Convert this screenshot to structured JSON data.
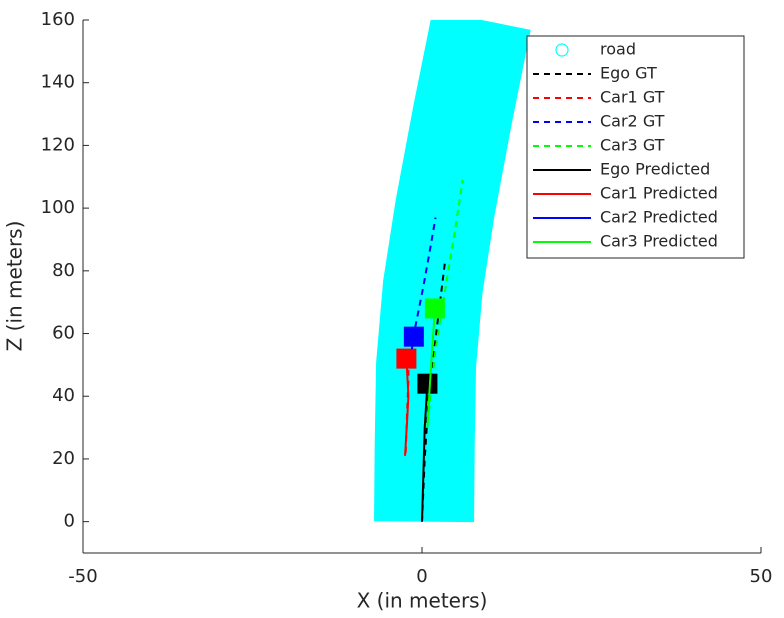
{
  "chart_data": {
    "type": "line",
    "xlabel": "X (in meters)",
    "ylabel": "Z (in meters)",
    "xlim": [
      -50,
      50
    ],
    "xticks": [
      -50,
      0,
      50
    ],
    "ylim": [
      -10,
      160
    ],
    "yticks": [
      0,
      20,
      40,
      60,
      80,
      100,
      120,
      140,
      160
    ],
    "legend": "upper right",
    "series": [
      {
        "name": "road",
        "color": "#00ffff",
        "marker": "circle",
        "x": [
          0.3,
          0.4,
          0.6,
          1.6,
          3.4,
          6.0,
          8.8
        ],
        "y": [
          0,
          25,
          50,
          75,
          100,
          130,
          160
        ]
      },
      {
        "name": "Ego GT",
        "color": "#000000",
        "dash": true,
        "x": [
          0,
          0.4,
          1.0,
          2.2,
          3.4
        ],
        "y": [
          0,
          20,
          40,
          62,
          83
        ]
      },
      {
        "name": "Car1 GT",
        "color": "#ff0000",
        "dash": true,
        "x": [
          -2.4,
          -2.2,
          -2.0,
          -2.0
        ],
        "y": [
          22,
          35,
          45,
          52
        ]
      },
      {
        "name": "Car2 GT",
        "color": "#0000ff",
        "dash": true,
        "x": [
          -1.0,
          0.2,
          1.2,
          2.0
        ],
        "y": [
          62,
          75,
          87,
          97
        ]
      },
      {
        "name": "Car3 GT",
        "color": "#00ff00",
        "dash": true,
        "x": [
          1.0,
          2.0,
          3.5,
          4.8,
          6.0
        ],
        "y": [
          35,
          55,
          75,
          92,
          109
        ]
      },
      {
        "name": "Ego Predicted",
        "color": "#000000",
        "marker": "square",
        "x": [
          0,
          0.2,
          0.4,
          0.8
        ],
        "y": [
          0,
          15,
          30,
          44
        ]
      },
      {
        "name": "Car1 Predicted",
        "color": "#ff0000",
        "marker": "square",
        "x": [
          -2.5,
          -2.2,
          -2.0,
          -2.3
        ],
        "y": [
          21,
          32,
          40,
          52
        ]
      },
      {
        "name": "Car2 Predicted",
        "color": "#0000ff",
        "marker": "square",
        "x": [
          -1.5,
          -1.2
        ],
        "y": [
          55,
          59
        ]
      },
      {
        "name": "Car3 Predicted",
        "color": "#00ff00",
        "marker": "square",
        "x": [
          0.8,
          1.2,
          1.6,
          1.9
        ],
        "y": [
          30,
          45,
          58,
          68
        ]
      }
    ]
  }
}
